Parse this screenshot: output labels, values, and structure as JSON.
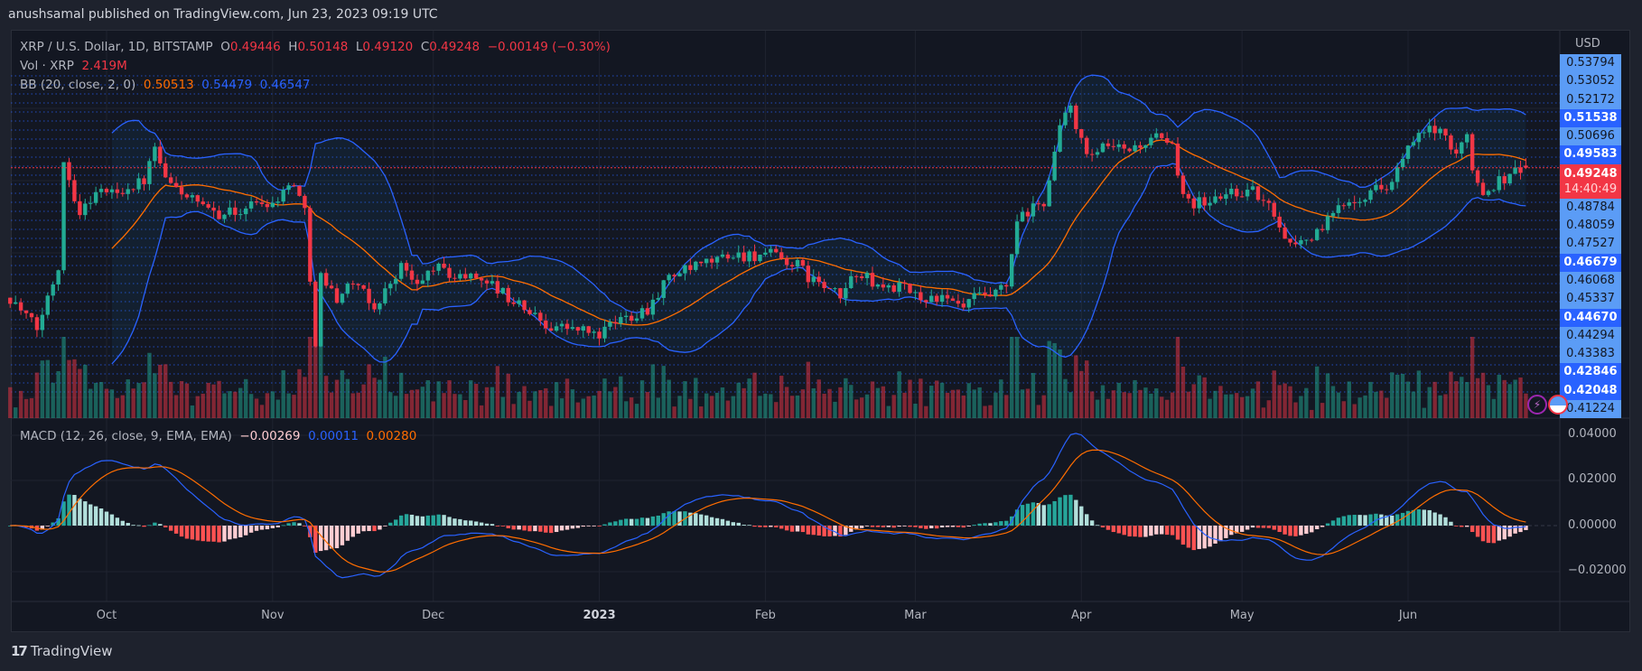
{
  "header": {
    "published": "anushsamal published on TradingView.com, Jun 23, 2023 09:19 UTC"
  },
  "legend": {
    "symbol": "XRP / U.S. Dollar, 1D, BITSTAMP",
    "o_label": "O",
    "o": "0.49446",
    "h_label": "H",
    "h": "0.50148",
    "l_label": "L",
    "l": "0.49120",
    "c_label": "C",
    "c": "0.49248",
    "change": "−0.00149 (−0.30%)",
    "vol_label": "Vol · XRP",
    "vol": "2.419M",
    "bb_label": "BB (20, close, 2, 0)",
    "bb_basis": "0.50513",
    "bb_upper": "0.54479",
    "bb_lower": "0.46547",
    "macd_label": "MACD (12, 26, close, 9, EMA, EMA)",
    "macd_hist": "−0.00269",
    "macd_line": "0.00011",
    "macd_signal": "0.00280"
  },
  "price_axis": {
    "currency": "USD",
    "labels": [
      {
        "v": "0.53794",
        "style": "light"
      },
      {
        "v": "0.53052",
        "style": "light"
      },
      {
        "v": "0.52172",
        "style": "light"
      },
      {
        "v": "0.51538",
        "style": "dark"
      },
      {
        "v": "0.50696",
        "style": "light"
      },
      {
        "v": "0.49583",
        "style": "dark"
      },
      {
        "v": "0.49248",
        "style": "current",
        "countdown": "14:40:49"
      },
      {
        "v": "0.48784",
        "style": "light"
      },
      {
        "v": "0.48059",
        "style": "light"
      },
      {
        "v": "0.47527",
        "style": "light"
      },
      {
        "v": "0.46679",
        "style": "dark"
      },
      {
        "v": "0.46068",
        "style": "light"
      },
      {
        "v": "0.45337",
        "style": "light"
      },
      {
        "v": "0.44670",
        "style": "dark"
      },
      {
        "v": "0.44294",
        "style": "light"
      },
      {
        "v": "0.43383",
        "style": "light"
      },
      {
        "v": "0.42846",
        "style": "dark"
      },
      {
        "v": "0.42048",
        "style": "dark"
      },
      {
        "v": "0.41224",
        "style": "light"
      }
    ]
  },
  "macd_axis": {
    "ticks": [
      "0.04000",
      "0.02000",
      "0.00000",
      "−0.02000"
    ]
  },
  "time_axis": {
    "labels": [
      {
        "t": "Oct",
        "date": "2022-10-01"
      },
      {
        "t": "Nov",
        "date": "2022-11-01"
      },
      {
        "t": "Dec",
        "date": "2022-12-01"
      },
      {
        "t": "2023",
        "date": "2023-01-01",
        "bold": true
      },
      {
        "t": "Feb",
        "date": "2023-02-01"
      },
      {
        "t": "Mar",
        "date": "2023-03-01"
      },
      {
        "t": "Apr",
        "date": "2023-04-01"
      },
      {
        "t": "May",
        "date": "2023-05-01"
      },
      {
        "t": "Jun",
        "date": "2023-06-01"
      }
    ]
  },
  "footer": {
    "brand": "TradingView"
  },
  "colors": {
    "up": "#22ab94",
    "down": "#f23645",
    "bb": "#2962ff",
    "basis": "#ff6d00",
    "macd": "#2962ff",
    "signal": "#ff6d00",
    "bg": "#131722"
  },
  "chart_data": {
    "type": "candlestick",
    "symbol": "XRPUSD",
    "interval": "1D",
    "date_range": [
      "2022-09-13",
      "2023-06-23"
    ],
    "approx_closes": [
      [
        "2022-09-13",
        0.37
      ],
      [
        "2022-09-18",
        0.34
      ],
      [
        "2022-09-22",
        0.4
      ],
      [
        "2022-09-23",
        0.5
      ],
      [
        "2022-09-26",
        0.45
      ],
      [
        "2022-09-29",
        0.47
      ],
      [
        "2022-10-03",
        0.47
      ],
      [
        "2022-10-08",
        0.48
      ],
      [
        "2022-10-10",
        0.51
      ],
      [
        "2022-10-12",
        0.48
      ],
      [
        "2022-10-15",
        0.47
      ],
      [
        "2022-10-20",
        0.45
      ],
      [
        "2022-10-25",
        0.45
      ],
      [
        "2022-10-29",
        0.46
      ],
      [
        "2022-11-01",
        0.46
      ],
      [
        "2022-11-05",
        0.48
      ],
      [
        "2022-11-07",
        0.45
      ],
      [
        "2022-11-09",
        0.33
      ],
      [
        "2022-11-10",
        0.39
      ],
      [
        "2022-11-13",
        0.37
      ],
      [
        "2022-11-16",
        0.385
      ],
      [
        "2022-11-20",
        0.36
      ],
      [
        "2022-11-25",
        0.4
      ],
      [
        "2022-11-28",
        0.38
      ],
      [
        "2022-12-01",
        0.4
      ],
      [
        "2022-12-05",
        0.39
      ],
      [
        "2022-12-10",
        0.39
      ],
      [
        "2022-12-15",
        0.37
      ],
      [
        "2022-12-18",
        0.36
      ],
      [
        "2022-12-22",
        0.345
      ],
      [
        "2022-12-28",
        0.34
      ],
      [
        "2023-01-01",
        0.335
      ],
      [
        "2023-01-05",
        0.35
      ],
      [
        "2023-01-10",
        0.36
      ],
      [
        "2023-01-14",
        0.39
      ],
      [
        "2023-01-20",
        0.4
      ],
      [
        "2023-01-25",
        0.41
      ],
      [
        "2023-01-29",
        0.41
      ],
      [
        "2023-02-02",
        0.41
      ],
      [
        "2023-02-07",
        0.4
      ],
      [
        "2023-02-09",
        0.39
      ],
      [
        "2023-02-12",
        0.38
      ],
      [
        "2023-02-15",
        0.37
      ],
      [
        "2023-02-18",
        0.395
      ],
      [
        "2023-02-22",
        0.38
      ],
      [
        "2023-02-26",
        0.38
      ],
      [
        "2023-03-02",
        0.37
      ],
      [
        "2023-03-05",
        0.37
      ],
      [
        "2023-03-10",
        0.36
      ],
      [
        "2023-03-12",
        0.37
      ],
      [
        "2023-03-15",
        0.37
      ],
      [
        "2023-03-18",
        0.38
      ],
      [
        "2023-03-20",
        0.44
      ],
      [
        "2023-03-22",
        0.45
      ],
      [
        "2023-03-25",
        0.46
      ],
      [
        "2023-03-28",
        0.53
      ],
      [
        "2023-03-30",
        0.55
      ],
      [
        "2023-04-02",
        0.5
      ],
      [
        "2023-04-05",
        0.51
      ],
      [
        "2023-04-10",
        0.51
      ],
      [
        "2023-04-15",
        0.52
      ],
      [
        "2023-04-18",
        0.51
      ],
      [
        "2023-04-20",
        0.47
      ],
      [
        "2023-04-22",
        0.46
      ],
      [
        "2023-04-25",
        0.46
      ],
      [
        "2023-04-29",
        0.47
      ],
      [
        "2023-05-03",
        0.47
      ],
      [
        "2023-05-07",
        0.45
      ],
      [
        "2023-05-10",
        0.42
      ],
      [
        "2023-05-15",
        0.43
      ],
      [
        "2023-05-20",
        0.46
      ],
      [
        "2023-05-25",
        0.47
      ],
      [
        "2023-05-29",
        0.48
      ],
      [
        "2023-06-01",
        0.51
      ],
      [
        "2023-06-05",
        0.53
      ],
      [
        "2023-06-08",
        0.52
      ],
      [
        "2023-06-10",
        0.5
      ],
      [
        "2023-06-12",
        0.53
      ],
      [
        "2023-06-13",
        0.49
      ],
      [
        "2023-06-15",
        0.47
      ],
      [
        "2023-06-18",
        0.48
      ],
      [
        "2023-06-21",
        0.49
      ],
      [
        "2023-06-23",
        0.49248
      ]
    ],
    "last_ohlc": {
      "open": 0.49446,
      "high": 0.50148,
      "low": 0.4912,
      "close": 0.49248
    },
    "indicators": [
      "Volume",
      "Bollinger Bands (20, 2)",
      "MACD (12, 26, 9)"
    ],
    "macd_ylim": [
      -0.03,
      0.045
    ],
    "grid": true
  }
}
